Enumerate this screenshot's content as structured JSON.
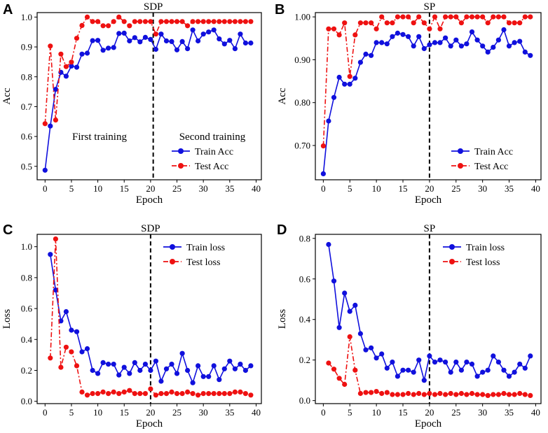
{
  "colors": {
    "train": "#1010dd",
    "test": "#ee1111",
    "axis": "#000000",
    "divider": "#000000"
  },
  "chart_data": [
    {
      "type": "line",
      "panel_label": "A",
      "title": "SDP",
      "xlabel": "Epoch",
      "ylabel": "Acc",
      "xlim": [
        -1.5,
        41
      ],
      "ylim": [
        0.455,
        1.015
      ],
      "xticks": [
        0,
        5,
        10,
        15,
        20,
        25,
        30,
        35,
        40
      ],
      "yticks": [
        0.5,
        0.6,
        0.7,
        0.8,
        0.9,
        1.0
      ],
      "ytick_labels": [
        "0.5",
        "0.6",
        "0.7",
        "0.8",
        "0.9",
        "1.0"
      ],
      "divider_x": 20.5,
      "legend_position": "lower-right",
      "annotations": [
        "First training",
        "Second training"
      ],
      "series": [
        {
          "name": "Train Acc",
          "color_key": "train",
          "dash": "solid",
          "x": [
            0,
            1,
            2,
            3,
            4,
            5,
            6,
            7,
            8,
            9,
            10,
            11,
            12,
            13,
            14,
            15,
            16,
            17,
            18,
            19,
            20,
            21,
            22,
            23,
            24,
            25,
            26,
            27,
            28,
            29,
            30,
            31,
            32,
            33,
            34,
            35,
            36,
            37,
            38,
            39
          ],
          "values": [
            0.487,
            0.635,
            0.758,
            0.815,
            0.802,
            0.836,
            0.832,
            0.876,
            0.879,
            0.921,
            0.922,
            0.889,
            0.896,
            0.898,
            0.945,
            0.946,
            0.92,
            0.931,
            0.917,
            0.932,
            0.925,
            0.892,
            0.943,
            0.92,
            0.918,
            0.89,
            0.918,
            0.894,
            0.957,
            0.92,
            0.943,
            0.95,
            0.957,
            0.927,
            0.91,
            0.922,
            0.894,
            0.943,
            0.913,
            0.913
          ]
        },
        {
          "name": "Test Acc",
          "color_key": "test",
          "dash": "dashdot",
          "x": [
            0,
            1,
            2,
            3,
            4,
            5,
            6,
            7,
            8,
            9,
            10,
            11,
            12,
            13,
            14,
            15,
            16,
            17,
            18,
            19,
            20,
            21,
            22,
            23,
            24,
            25,
            26,
            27,
            28,
            29,
            30,
            31,
            32,
            33,
            34,
            35,
            36,
            37,
            38,
            39
          ],
          "values": [
            0.643,
            0.903,
            0.655,
            0.876,
            0.834,
            0.849,
            0.929,
            0.972,
            1.0,
            0.985,
            0.985,
            0.971,
            0.971,
            0.985,
            1.0,
            0.985,
            0.971,
            0.985,
            0.985,
            0.985,
            0.985,
            0.943,
            0.985,
            0.985,
            0.985,
            0.985,
            0.985,
            0.971,
            0.985,
            0.985,
            0.985,
            0.985,
            0.985,
            0.985,
            0.985,
            0.985,
            0.985,
            0.985,
            0.985,
            0.985
          ]
        }
      ]
    },
    {
      "type": "line",
      "panel_label": "B",
      "title": "SP",
      "xlabel": "Epoch",
      "ylabel": "Acc",
      "xlim": [
        -1.5,
        41
      ],
      "ylim": [
        0.62,
        1.01
      ],
      "xticks": [
        0,
        5,
        10,
        15,
        20,
        25,
        30,
        35,
        40
      ],
      "yticks": [
        0.7,
        0.8,
        0.9,
        1.0
      ],
      "ytick_labels": [
        "0.70",
        "0.80",
        "0.90",
        "1.00"
      ],
      "divider_x": 20,
      "legend_position": "lower-right",
      "annotations": [],
      "series": [
        {
          "name": "Train Acc",
          "color_key": "train",
          "dash": "solid",
          "x": [
            0,
            1,
            2,
            3,
            4,
            5,
            6,
            7,
            8,
            9,
            10,
            11,
            12,
            13,
            14,
            15,
            16,
            17,
            18,
            19,
            20,
            21,
            22,
            23,
            24,
            25,
            26,
            27,
            28,
            29,
            30,
            31,
            32,
            33,
            34,
            35,
            36,
            37,
            38,
            39
          ],
          "values": [
            0.634,
            0.757,
            0.812,
            0.859,
            0.843,
            0.843,
            0.857,
            0.894,
            0.913,
            0.91,
            0.94,
            0.94,
            0.937,
            0.954,
            0.962,
            0.959,
            0.954,
            0.932,
            0.954,
            0.926,
            0.935,
            0.94,
            0.94,
            0.951,
            0.932,
            0.946,
            0.932,
            0.937,
            0.965,
            0.946,
            0.932,
            0.918,
            0.929,
            0.946,
            0.97,
            0.932,
            0.94,
            0.943,
            0.918,
            0.91
          ]
        },
        {
          "name": "Test Acc",
          "color_key": "test",
          "dash": "dashdot",
          "x": [
            0,
            1,
            2,
            3,
            4,
            5,
            6,
            7,
            8,
            9,
            10,
            11,
            12,
            13,
            14,
            15,
            16,
            17,
            18,
            19,
            20,
            21,
            22,
            23,
            24,
            25,
            26,
            27,
            28,
            29,
            30,
            31,
            32,
            33,
            34,
            35,
            36,
            37,
            38,
            39
          ],
          "values": [
            0.699,
            0.972,
            0.972,
            0.958,
            0.986,
            0.861,
            0.958,
            0.986,
            0.986,
            0.986,
            0.972,
            1.0,
            0.986,
            0.986,
            1.0,
            1.0,
            1.0,
            0.986,
            1.0,
            0.986,
            0.972,
            1.0,
            0.972,
            1.0,
            1.0,
            1.0,
            0.986,
            1.0,
            1.0,
            1.0,
            1.0,
            0.986,
            1.0,
            1.0,
            1.0,
            0.986,
            0.986,
            0.986,
            1.0,
            1.0
          ]
        }
      ]
    },
    {
      "type": "line",
      "panel_label": "C",
      "title": "SDP",
      "xlabel": "Epoch",
      "ylabel": "Loss",
      "xlim": [
        -1.5,
        41
      ],
      "ylim": [
        -0.015,
        1.08
      ],
      "xticks": [
        0,
        5,
        10,
        15,
        20,
        25,
        30,
        35,
        40
      ],
      "yticks": [
        0.0,
        0.2,
        0.4,
        0.6,
        0.8,
        1.0
      ],
      "ytick_labels": [
        "0.0",
        "0.2",
        "0.4",
        "0.6",
        "0.8",
        "1.0"
      ],
      "divider_x": 20,
      "legend_position": "top-right",
      "annotations": [],
      "series": [
        {
          "name": "Train loss",
          "color_key": "train",
          "dash": "solid",
          "x": [
            1,
            2,
            3,
            4,
            5,
            6,
            7,
            8,
            9,
            10,
            11,
            12,
            13,
            14,
            15,
            16,
            17,
            18,
            19,
            20,
            21,
            22,
            23,
            24,
            25,
            26,
            27,
            28,
            29,
            30,
            31,
            32,
            33,
            34,
            35,
            36,
            37,
            38,
            39
          ],
          "values": [
            0.95,
            0.72,
            0.52,
            0.58,
            0.46,
            0.45,
            0.32,
            0.34,
            0.2,
            0.18,
            0.25,
            0.24,
            0.24,
            0.17,
            0.22,
            0.18,
            0.25,
            0.2,
            0.24,
            0.2,
            0.26,
            0.13,
            0.21,
            0.24,
            0.18,
            0.31,
            0.2,
            0.12,
            0.23,
            0.16,
            0.16,
            0.23,
            0.14,
            0.21,
            0.26,
            0.21,
            0.24,
            0.2,
            0.23
          ]
        },
        {
          "name": "Test loss",
          "color_key": "test",
          "dash": "dashdot",
          "x": [
            1,
            2,
            3,
            4,
            5,
            6,
            7,
            8,
            9,
            10,
            11,
            12,
            13,
            14,
            15,
            16,
            17,
            18,
            19,
            20,
            21,
            22,
            23,
            24,
            25,
            26,
            27,
            28,
            29,
            30,
            31,
            32,
            33,
            34,
            35,
            36,
            37,
            38,
            39
          ],
          "values": [
            0.28,
            1.05,
            0.22,
            0.35,
            0.32,
            0.23,
            0.06,
            0.04,
            0.05,
            0.05,
            0.06,
            0.05,
            0.06,
            0.05,
            0.06,
            0.07,
            0.05,
            0.05,
            0.05,
            0.08,
            0.04,
            0.05,
            0.05,
            0.06,
            0.05,
            0.05,
            0.06,
            0.05,
            0.04,
            0.05,
            0.05,
            0.05,
            0.05,
            0.05,
            0.05,
            0.06,
            0.06,
            0.05,
            0.04
          ]
        }
      ]
    },
    {
      "type": "line",
      "panel_label": "D",
      "title": "SP",
      "xlabel": "Epoch",
      "ylabel": "Loss",
      "xlim": [
        -1.5,
        41
      ],
      "ylim": [
        -0.015,
        0.82
      ],
      "xticks": [
        0,
        5,
        10,
        15,
        20,
        25,
        30,
        35,
        40
      ],
      "yticks": [
        0.0,
        0.2,
        0.4,
        0.6,
        0.8
      ],
      "ytick_labels": [
        "0.0",
        "0.2",
        "0.4",
        "0.6",
        "0.8"
      ],
      "divider_x": 20,
      "legend_position": "top-right",
      "annotations": [],
      "series": [
        {
          "name": "Train loss",
          "color_key": "train",
          "dash": "solid",
          "x": [
            1,
            2,
            3,
            4,
            5,
            6,
            7,
            8,
            9,
            10,
            11,
            12,
            13,
            14,
            15,
            16,
            17,
            18,
            19,
            20,
            21,
            22,
            23,
            24,
            25,
            26,
            27,
            28,
            29,
            30,
            31,
            32,
            33,
            34,
            35,
            36,
            37,
            38,
            39
          ],
          "values": [
            0.77,
            0.59,
            0.36,
            0.53,
            0.44,
            0.47,
            0.33,
            0.25,
            0.26,
            0.21,
            0.23,
            0.16,
            0.19,
            0.12,
            0.15,
            0.15,
            0.14,
            0.2,
            0.1,
            0.22,
            0.19,
            0.2,
            0.19,
            0.14,
            0.19,
            0.15,
            0.19,
            0.18,
            0.12,
            0.14,
            0.15,
            0.22,
            0.19,
            0.15,
            0.12,
            0.14,
            0.18,
            0.16,
            0.22
          ]
        },
        {
          "name": "Test loss",
          "color_key": "test",
          "dash": "dashdot",
          "x": [
            1,
            2,
            3,
            4,
            5,
            6,
            7,
            8,
            9,
            10,
            11,
            12,
            13,
            14,
            15,
            16,
            17,
            18,
            19,
            20,
            21,
            22,
            23,
            24,
            25,
            26,
            27,
            28,
            29,
            30,
            31,
            32,
            33,
            34,
            35,
            36,
            37,
            38,
            39
          ],
          "values": [
            0.185,
            0.155,
            0.11,
            0.08,
            0.315,
            0.15,
            0.035,
            0.04,
            0.04,
            0.045,
            0.035,
            0.04,
            0.03,
            0.03,
            0.03,
            0.035,
            0.03,
            0.035,
            0.03,
            0.035,
            0.03,
            0.035,
            0.03,
            0.035,
            0.03,
            0.035,
            0.03,
            0.035,
            0.03,
            0.03,
            0.025,
            0.03,
            0.03,
            0.035,
            0.03,
            0.03,
            0.035,
            0.03,
            0.025
          ]
        }
      ]
    }
  ]
}
